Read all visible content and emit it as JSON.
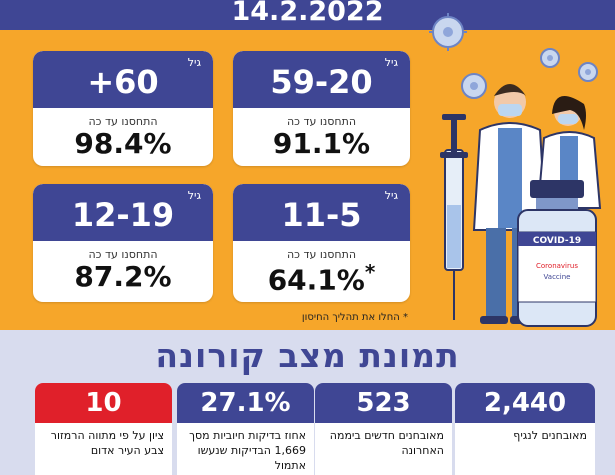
{
  "date": "14.2.2022",
  "cards": [
    {
      "age": "+60",
      "unit": "גיל",
      "label": "התחסנו עד כה",
      "percent": "98.4%"
    },
    {
      "age": "59-20",
      "unit": "גיל",
      "label": "התחסנו עד כה",
      "percent": "91.1%"
    },
    {
      "age": "12-19",
      "unit": "גיל",
      "label": "התחסנו עד כה",
      "percent": "87.2%"
    },
    {
      "age": "11-5",
      "unit": "גיל",
      "label": "התחסנו עד כה",
      "percent": "64.1%",
      "star": "*"
    }
  ],
  "footnote": "* החלו את תהליך החיסון",
  "section_title": "תמונת מצב קורונה",
  "stats": [
    {
      "value": "10",
      "label": "ציון על פי מתווה הרמזור צבע העיר אדום"
    },
    {
      "value": "27.1%",
      "label": "אחוז בדיקות חיוביות מסך 1,669 הבדיקות שנעשו אתמול"
    },
    {
      "value": "523",
      "label": "מאובחנים חדשים ביממה האחרונה"
    },
    {
      "value": "2,440",
      "label": "מאובחנים לנגיף"
    }
  ],
  "vial": {
    "brand": "COVID-19",
    "line1": "Coronavirus",
    "line2": "Vaccine"
  },
  "colors": {
    "primary": "#3f4694",
    "background": "#f6a62a",
    "alert": "#e0202a",
    "bottom": "#d8dcee"
  }
}
